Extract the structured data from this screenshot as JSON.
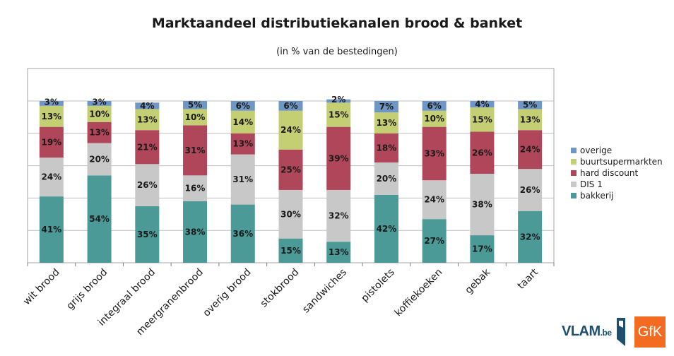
{
  "chart_data": {
    "type": "bar",
    "stacked": true,
    "title": "Marktaandeel distributiekanalen brood & banket",
    "subtitle": "(in % van de bestedingen)",
    "categories": [
      "wit brood",
      "grijs brood",
      "integraal brood",
      "meergranenbrood",
      "overig brood",
      "stokbrood",
      "sandwiches",
      "pistolets",
      "koffiekoeken",
      "gebak",
      "taart"
    ],
    "series": [
      {
        "name": "bakkerij",
        "color": "#4c9a98",
        "values": [
          41,
          54,
          35,
          38,
          36,
          15,
          13,
          42,
          27,
          17,
          32
        ]
      },
      {
        "name": "DIS 1",
        "color": "#c8c8c8",
        "values": [
          24,
          20,
          26,
          16,
          31,
          30,
          32,
          20,
          24,
          38,
          26
        ]
      },
      {
        "name": "hard discount",
        "color": "#b0465a",
        "values": [
          19,
          13,
          21,
          31,
          13,
          25,
          39,
          18,
          33,
          26,
          24
        ]
      },
      {
        "name": "buurtsupermarkten",
        "color": "#c4ce72",
        "values": [
          13,
          10,
          13,
          10,
          14,
          24,
          15,
          13,
          10,
          15,
          13
        ]
      },
      {
        "name": "overige",
        "color": "#6f97c6",
        "values": [
          3,
          3,
          4,
          5,
          6,
          6,
          2,
          7,
          6,
          4,
          5
        ]
      }
    ],
    "legend_order": [
      "overige",
      "buurtsupermarkten",
      "hard discount",
      "DIS 1",
      "bakkerij"
    ],
    "ylim": [
      0,
      100
    ],
    "grid": true,
    "legend_position": "right",
    "xlabel": "",
    "ylabel": ""
  },
  "logos": {
    "vlam_main": "VLAM",
    "vlam_suffix": ".be",
    "gfk": "GfK"
  }
}
